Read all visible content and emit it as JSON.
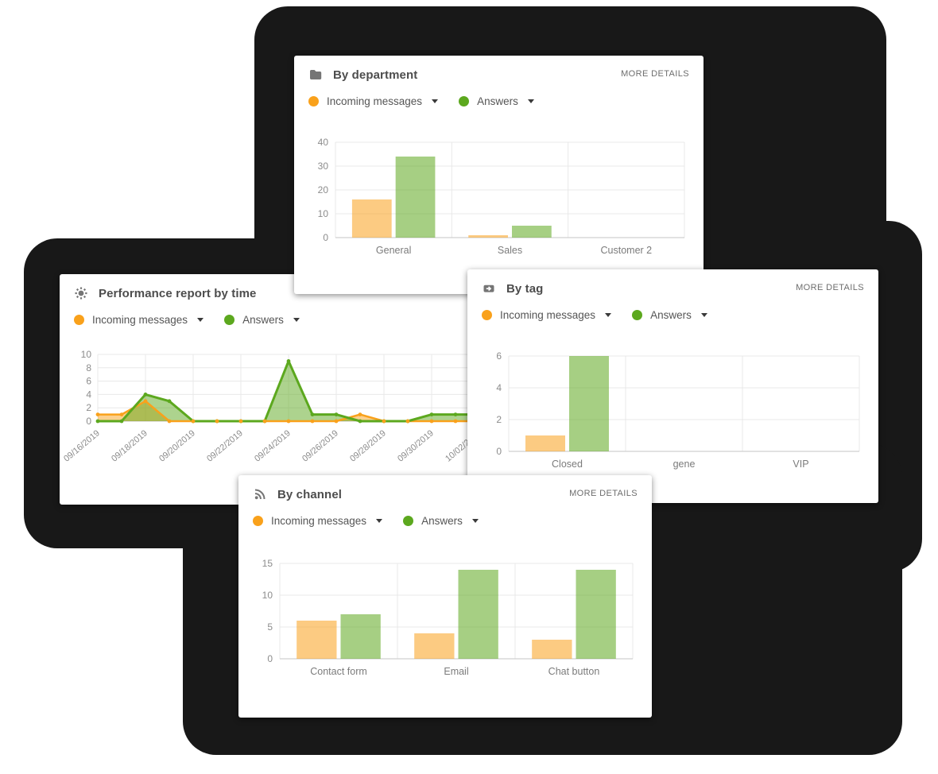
{
  "colors": {
    "incoming": "#F9A11B",
    "answers": "#5CA81E",
    "blob": "#181818",
    "card_bg": "#ffffff",
    "grid": "#e8e8e8",
    "axis": "#c6c6c6"
  },
  "cards": [
    {
      "id": "by-department",
      "icon": "folder-icon",
      "title": "By department",
      "more_details": "MORE DETAILS",
      "legend": [
        {
          "label": "Incoming messages",
          "color": "#F9A11B"
        },
        {
          "label": "Answers",
          "color": "#5CA81E"
        }
      ]
    },
    {
      "id": "performance-by-time",
      "icon": "gear-icon",
      "title": "Performance report by time",
      "legend": [
        {
          "label": "Incoming messages",
          "color": "#F9A11B"
        },
        {
          "label": "Answers",
          "color": "#5CA81E"
        }
      ]
    },
    {
      "id": "by-tag",
      "icon": "tag-icon",
      "title": "By tag",
      "more_details": "MORE DETAILS",
      "legend": [
        {
          "label": "Incoming messages",
          "color": "#F9A11B"
        },
        {
          "label": "Answers",
          "color": "#5CA81E"
        }
      ]
    },
    {
      "id": "by-channel",
      "icon": "rss-icon",
      "title": "By channel",
      "more_details": "MORE DETAILS",
      "legend": [
        {
          "label": "Incoming messages",
          "color": "#F9A11B"
        },
        {
          "label": "Answers",
          "color": "#5CA81E"
        }
      ]
    }
  ],
  "chart_data": [
    {
      "type": "bar",
      "title": "By department",
      "categories": [
        "General",
        "Sales",
        "Customer 2"
      ],
      "series": [
        {
          "name": "Incoming messages",
          "color": "#F9A11B",
          "values": [
            16,
            1,
            0
          ]
        },
        {
          "name": "Answers",
          "color": "#5CA81E",
          "values": [
            34,
            5,
            0
          ]
        }
      ],
      "yticks": [
        0,
        10,
        20,
        30,
        40
      ],
      "ylim": [
        0,
        40
      ],
      "grid": true,
      "legend_position": "top"
    },
    {
      "type": "area",
      "title": "Performance report by time",
      "x": [
        "09/16/2019",
        "09/17/2019",
        "09/18/2019",
        "09/19/2019",
        "09/20/2019",
        "09/21/2019",
        "09/22/2019",
        "09/23/2019",
        "09/24/2019",
        "09/25/2019",
        "09/26/2019",
        "09/27/2019",
        "09/28/2019",
        "09/29/2019",
        "09/30/2019",
        "10/01/2019",
        "10/02/2019"
      ],
      "label_every": 2,
      "series": [
        {
          "name": "Incoming messages",
          "color": "#F9A11B",
          "values": [
            1,
            1,
            3,
            0,
            0,
            0,
            0,
            0,
            0,
            0,
            0,
            1,
            0,
            0,
            0,
            0,
            0
          ]
        },
        {
          "name": "Answers",
          "color": "#5CA81E",
          "values": [
            0,
            0,
            4,
            3,
            0,
            0,
            0,
            0,
            9,
            1,
            1,
            0,
            0,
            0,
            1,
            1,
            1
          ]
        }
      ],
      "yticks": [
        0,
        2,
        4,
        6,
        8,
        10
      ],
      "ylim": [
        0,
        10
      ],
      "grid": true,
      "legend_position": "top"
    },
    {
      "type": "bar",
      "title": "By tag",
      "categories": [
        "Closed",
        "gene",
        "VIP"
      ],
      "series": [
        {
          "name": "Incoming messages",
          "color": "#F9A11B",
          "values": [
            1,
            0,
            0
          ]
        },
        {
          "name": "Answers",
          "color": "#5CA81E",
          "values": [
            6,
            0,
            0
          ]
        }
      ],
      "yticks": [
        0,
        2,
        4,
        6
      ],
      "ylim": [
        0,
        6
      ],
      "grid": true,
      "legend_position": "top"
    },
    {
      "type": "bar",
      "title": "By channel",
      "categories": [
        "Contact form",
        "Email",
        "Chat button"
      ],
      "series": [
        {
          "name": "Incoming messages",
          "color": "#F9A11B",
          "values": [
            6,
            4,
            3
          ]
        },
        {
          "name": "Answers",
          "color": "#5CA81E",
          "values": [
            7,
            14,
            14
          ]
        }
      ],
      "yticks": [
        0,
        5,
        10,
        15
      ],
      "ylim": [
        0,
        15
      ],
      "grid": true,
      "legend_position": "top"
    }
  ]
}
